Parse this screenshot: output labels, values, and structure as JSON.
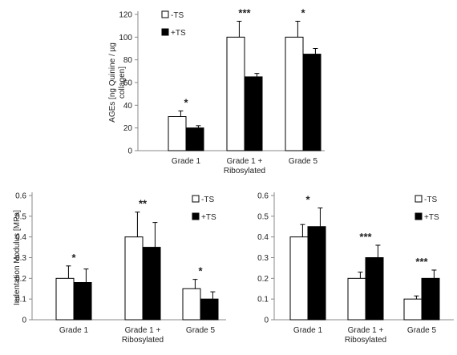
{
  "chart_data": [
    {
      "type": "bar",
      "title": "",
      "ylabel": "AGEs [ng Quinine / µg collagen]",
      "xlabel": "",
      "categories": [
        "Grade 1",
        "Grade 1 + Ribosylated",
        "Grade 5"
      ],
      "series": [
        {
          "name": "-TS",
          "values": [
            30,
            100,
            100
          ],
          "errors": [
            5,
            14,
            14
          ]
        },
        {
          "name": "+TS",
          "values": [
            20,
            65,
            85
          ],
          "errors": [
            2,
            3,
            5
          ]
        }
      ],
      "significance": [
        "*",
        "***",
        "*"
      ],
      "ylim": [
        0,
        120
      ],
      "yticks": [
        0,
        20,
        40,
        60,
        80,
        100,
        120
      ],
      "legend": "top-left",
      "grid": false
    },
    {
      "type": "bar",
      "title": "",
      "ylabel": "Indentation Modulus [MPa]",
      "xlabel": "",
      "categories": [
        "Grade 1",
        "Grade 1 + Ribosylated",
        "Grade 5"
      ],
      "series": [
        {
          "name": "-TS",
          "values": [
            0.2,
            0.4,
            0.15
          ],
          "errors": [
            0.06,
            0.12,
            0.045
          ]
        },
        {
          "name": "+TS",
          "values": [
            0.18,
            0.35,
            0.1
          ],
          "errors": [
            0.065,
            0.12,
            0.035
          ]
        }
      ],
      "significance": [
        "*",
        "**",
        "*"
      ],
      "ylim": [
        0,
        0.6
      ],
      "yticks": [
        0,
        0.1,
        0.2,
        0.3,
        0.4,
        0.5,
        0.6
      ],
      "legend": "top-right",
      "grid": false
    },
    {
      "type": "bar",
      "title": "",
      "ylabel": "",
      "xlabel": "",
      "categories": [
        "Grade 1",
        "Grade 1 + Ribosylated",
        "Grade 5"
      ],
      "series": [
        {
          "name": "-TS",
          "values": [
            0.4,
            0.2,
            0.1
          ],
          "errors": [
            0.06,
            0.03,
            0.015
          ]
        },
        {
          "name": "+TS",
          "values": [
            0.45,
            0.3,
            0.2
          ],
          "errors": [
            0.09,
            0.06,
            0.04
          ]
        }
      ],
      "significance": [
        "*",
        "***",
        "***"
      ],
      "ylim": [
        0,
        0.6
      ],
      "yticks": [
        0,
        0.1,
        0.2,
        0.3,
        0.4,
        0.5,
        0.6
      ],
      "legend": "top-right",
      "grid": false
    }
  ]
}
